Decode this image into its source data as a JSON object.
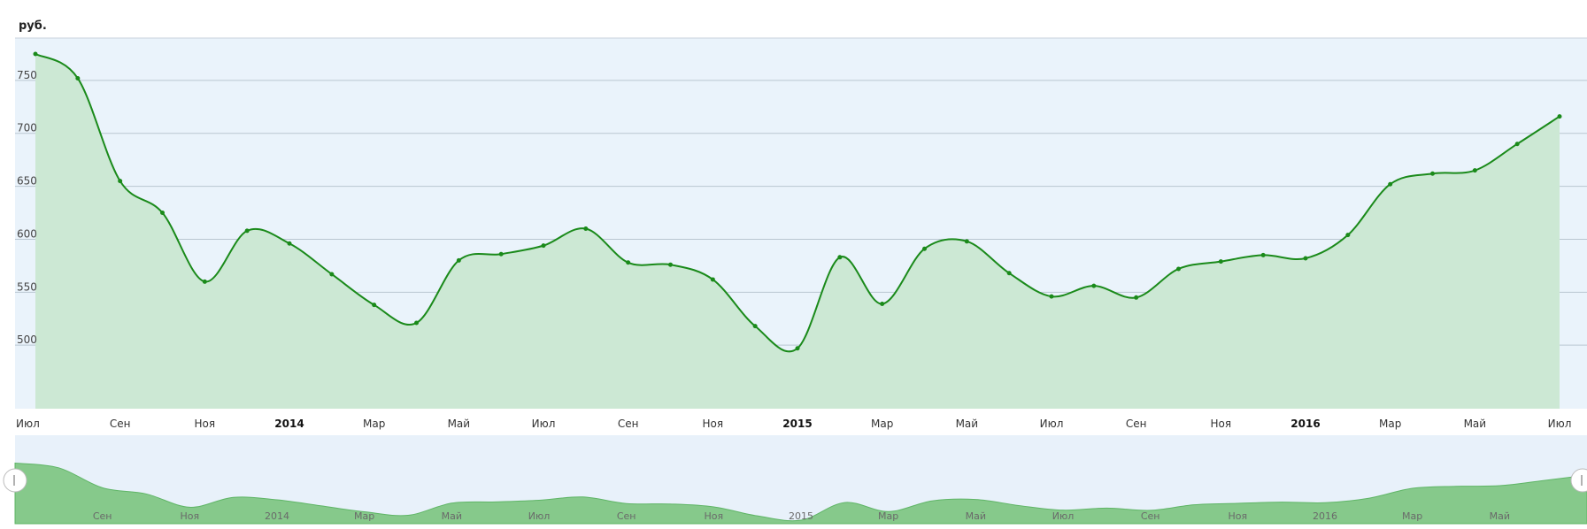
{
  "chart_data": {
    "type": "area",
    "unit_label": "руб.",
    "ylim": [
      440,
      790
    ],
    "yticks": [
      500,
      550,
      600,
      650,
      700,
      750
    ],
    "x_start": "2013-07",
    "x_end": "2016-07",
    "x_tick_labels": [
      {
        "m": 0,
        "label": "Июл",
        "bold": false
      },
      {
        "m": 2,
        "label": "Сен",
        "bold": false
      },
      {
        "m": 4,
        "label": "Ноя",
        "bold": false
      },
      {
        "m": 6,
        "label": "2014",
        "bold": true
      },
      {
        "m": 8,
        "label": "Мар",
        "bold": false
      },
      {
        "m": 10,
        "label": "Май",
        "bold": false
      },
      {
        "m": 12,
        "label": "Июл",
        "bold": false
      },
      {
        "m": 14,
        "label": "Сен",
        "bold": false
      },
      {
        "m": 16,
        "label": "Ноя",
        "bold": false
      },
      {
        "m": 18,
        "label": "2015",
        "bold": true
      },
      {
        "m": 20,
        "label": "Мар",
        "bold": false
      },
      {
        "m": 22,
        "label": "Май",
        "bold": false
      },
      {
        "m": 24,
        "label": "Июл",
        "bold": false
      },
      {
        "m": 26,
        "label": "Сен",
        "bold": false
      },
      {
        "m": 28,
        "label": "Ноя",
        "bold": false
      },
      {
        "m": 30,
        "label": "2016",
        "bold": true
      },
      {
        "m": 32,
        "label": "Мар",
        "bold": false
      },
      {
        "m": 34,
        "label": "Май",
        "bold": false
      },
      {
        "m": 36,
        "label": "Июл",
        "bold": false
      }
    ],
    "navigator_tick_labels": [
      "Сен",
      "Ноя",
      "2014",
      "Мар",
      "Май",
      "Июл",
      "Сен",
      "Ноя",
      "2015",
      "Мар",
      "Май",
      "Июл",
      "Сен",
      "Ноя",
      "2016",
      "Мар",
      "Май"
    ],
    "x": [
      "2013-07",
      "2013-08",
      "2013-09",
      "2013-10",
      "2013-11",
      "2013-12",
      "2014-01",
      "2014-02",
      "2014-03",
      "2014-04",
      "2014-05",
      "2014-06",
      "2014-07",
      "2014-08",
      "2014-09",
      "2014-10",
      "2014-11",
      "2014-12",
      "2015-01",
      "2015-02",
      "2015-03",
      "2015-04",
      "2015-05",
      "2015-06",
      "2015-07",
      "2015-08",
      "2015-09",
      "2015-10",
      "2015-11",
      "2015-12",
      "2016-01",
      "2016-02",
      "2016-03",
      "2016-04",
      "2016-05",
      "2016-06",
      "2016-07"
    ],
    "values": [
      775,
      752,
      655,
      625,
      560,
      608,
      596,
      567,
      538,
      521,
      580,
      586,
      594,
      610,
      578,
      576,
      562,
      518,
      497,
      583,
      539,
      591,
      598,
      568,
      546,
      556,
      545,
      572,
      579,
      585,
      582,
      604,
      652,
      662,
      665,
      690,
      716
    ],
    "colors": {
      "line": "#1a8a1a",
      "area": "#cce8d4",
      "plot_bg": "#eaf3fb",
      "grid": "#b9c6d1",
      "nav_area": "#86c98b",
      "nav_bg": "#e8f1fa"
    },
    "grid": true,
    "legend": "none"
  }
}
